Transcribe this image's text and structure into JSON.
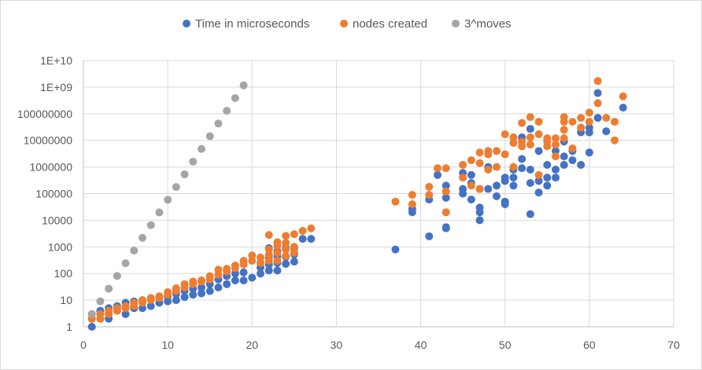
{
  "chart_data": {
    "type": "scatter",
    "title": "",
    "xlabel": "",
    "ylabel": "",
    "xlim": [
      0,
      70
    ],
    "x_ticks": [
      0,
      10,
      20,
      30,
      40,
      50,
      60,
      70
    ],
    "y_scale": "log",
    "ylim": [
      1,
      10000000000
    ],
    "y_ticks": [
      1,
      10,
      100,
      1000,
      10000,
      100000,
      1000000,
      10000000,
      100000000,
      1000000000,
      10000000000
    ],
    "y_tick_labels": [
      "1",
      "10",
      "100",
      "1000",
      "10000",
      "100000",
      "1000000",
      "10000000",
      "100000000",
      "1E+09",
      "1E+10"
    ],
    "grid": true,
    "legend_position": "top",
    "series": [
      {
        "name": "Time in microseconds",
        "color": "#4472c4",
        "points": [
          [
            1,
            1
          ],
          [
            1,
            2
          ],
          [
            2,
            2
          ],
          [
            2,
            4
          ],
          [
            3,
            2
          ],
          [
            3,
            5
          ],
          [
            4,
            4
          ],
          [
            4,
            6
          ],
          [
            5,
            3
          ],
          [
            5,
            8
          ],
          [
            6,
            5
          ],
          [
            6,
            9
          ],
          [
            7,
            5
          ],
          [
            7,
            10
          ],
          [
            8,
            6
          ],
          [
            8,
            11
          ],
          [
            9,
            8
          ],
          [
            9,
            12
          ],
          [
            10,
            9
          ],
          [
            10,
            14
          ],
          [
            11,
            10
          ],
          [
            11,
            17
          ],
          [
            12,
            13
          ],
          [
            12,
            22
          ],
          [
            13,
            16
          ],
          [
            13,
            27
          ],
          [
            14,
            18
          ],
          [
            14,
            30
          ],
          [
            15,
            22
          ],
          [
            15,
            40
          ],
          [
            16,
            30
          ],
          [
            16,
            60
          ],
          [
            17,
            40
          ],
          [
            17,
            80
          ],
          [
            18,
            55
          ],
          [
            18,
            100
          ],
          [
            19,
            55
          ],
          [
            19,
            110
          ],
          [
            20,
            70
          ],
          [
            21,
            100
          ],
          [
            21,
            170
          ],
          [
            22,
            130
          ],
          [
            22,
            220
          ],
          [
            22,
            380
          ],
          [
            22,
            900
          ],
          [
            23,
            130
          ],
          [
            23,
            250
          ],
          [
            23,
            450
          ],
          [
            23,
            700
          ],
          [
            24,
            230
          ],
          [
            24,
            420
          ],
          [
            24,
            900
          ],
          [
            25,
            280
          ],
          [
            25,
            520
          ],
          [
            25,
            900
          ],
          [
            26,
            2000
          ],
          [
            27,
            2000
          ],
          [
            37,
            800
          ],
          [
            39,
            20000
          ],
          [
            39,
            27000
          ],
          [
            41,
            2500
          ],
          [
            41,
            60000
          ],
          [
            42,
            500000
          ],
          [
            43,
            5000
          ],
          [
            43,
            5500
          ],
          [
            43,
            70000
          ],
          [
            43,
            200000
          ],
          [
            45,
            100000
          ],
          [
            45,
            150000
          ],
          [
            45,
            600000
          ],
          [
            46,
            60000
          ],
          [
            46,
            250000
          ],
          [
            46,
            500000
          ],
          [
            47,
            10000
          ],
          [
            47,
            20000
          ],
          [
            47,
            30000
          ],
          [
            47,
            150000
          ],
          [
            48,
            150000
          ],
          [
            48,
            1000000
          ],
          [
            49,
            80000
          ],
          [
            49,
            200000
          ],
          [
            50,
            40000
          ],
          [
            50,
            50000
          ],
          [
            50,
            300000
          ],
          [
            50,
            400000
          ],
          [
            51,
            200000
          ],
          [
            51,
            400000
          ],
          [
            51,
            800000
          ],
          [
            52,
            900000
          ],
          [
            52,
            2000000
          ],
          [
            52,
            13000000
          ],
          [
            53,
            17000
          ],
          [
            53,
            250000
          ],
          [
            53,
            800000
          ],
          [
            53,
            27000000
          ],
          [
            54,
            110000
          ],
          [
            54,
            300000
          ],
          [
            54,
            4000000
          ],
          [
            55,
            200000
          ],
          [
            55,
            400000
          ],
          [
            55,
            1200000
          ],
          [
            56,
            400000
          ],
          [
            56,
            800000
          ],
          [
            56,
            4000000
          ],
          [
            57,
            1200000
          ],
          [
            57,
            2500000
          ],
          [
            57,
            9000000
          ],
          [
            58,
            1800000
          ],
          [
            58,
            4000000
          ],
          [
            59,
            1200000
          ],
          [
            59,
            20000000
          ],
          [
            59,
            30000000
          ],
          [
            60,
            3500000
          ],
          [
            60,
            20000000
          ],
          [
            60,
            30000000
          ],
          [
            61,
            70000000
          ],
          [
            61,
            600000000
          ],
          [
            62,
            22000000
          ],
          [
            64,
            170000000
          ]
        ]
      },
      {
        "name": "nodes created",
        "color": "#ed7d31",
        "points": [
          [
            1,
            2
          ],
          [
            1,
            3
          ],
          [
            2,
            2
          ],
          [
            2,
            3
          ],
          [
            3,
            3
          ],
          [
            3,
            4
          ],
          [
            4,
            4
          ],
          [
            4,
            5
          ],
          [
            5,
            5
          ],
          [
            5,
            6
          ],
          [
            6,
            6
          ],
          [
            6,
            8
          ],
          [
            7,
            8
          ],
          [
            7,
            10
          ],
          [
            8,
            10
          ],
          [
            8,
            12
          ],
          [
            9,
            12
          ],
          [
            9,
            14
          ],
          [
            10,
            16
          ],
          [
            10,
            20
          ],
          [
            11,
            22
          ],
          [
            11,
            28
          ],
          [
            12,
            30
          ],
          [
            12,
            40
          ],
          [
            13,
            40
          ],
          [
            13,
            50
          ],
          [
            14,
            50
          ],
          [
            14,
            55
          ],
          [
            15,
            60
          ],
          [
            15,
            80
          ],
          [
            16,
            90
          ],
          [
            16,
            140
          ],
          [
            17,
            120
          ],
          [
            17,
            150
          ],
          [
            18,
            160
          ],
          [
            18,
            200
          ],
          [
            19,
            220
          ],
          [
            19,
            300
          ],
          [
            20,
            300
          ],
          [
            20,
            480
          ],
          [
            21,
            250
          ],
          [
            21,
            400
          ],
          [
            22,
            300
          ],
          [
            22,
            500
          ],
          [
            22,
            800
          ],
          [
            22,
            2800
          ],
          [
            23,
            300
          ],
          [
            23,
            600
          ],
          [
            23,
            1100
          ],
          [
            23,
            1500
          ],
          [
            24,
            450
          ],
          [
            24,
            800
          ],
          [
            24,
            1400
          ],
          [
            24,
            2600
          ],
          [
            25,
            600
          ],
          [
            25,
            1000
          ],
          [
            25,
            3000
          ],
          [
            26,
            4000
          ],
          [
            27,
            5000
          ],
          [
            37,
            50000
          ],
          [
            39,
            40000
          ],
          [
            39,
            90000
          ],
          [
            41,
            90000
          ],
          [
            41,
            180000
          ],
          [
            42,
            900000
          ],
          [
            43,
            20000
          ],
          [
            43,
            120000
          ],
          [
            43,
            900000
          ],
          [
            45,
            1200000
          ],
          [
            45,
            400000
          ],
          [
            46,
            1800000
          ],
          [
            46,
            200000
          ],
          [
            47,
            150000
          ],
          [
            47,
            1400000
          ],
          [
            47,
            3500000
          ],
          [
            48,
            800000
          ],
          [
            48,
            3000000
          ],
          [
            48,
            4000000
          ],
          [
            49,
            1000000
          ],
          [
            49,
            4000000
          ],
          [
            50,
            3000000
          ],
          [
            50,
            17000000
          ],
          [
            51,
            1000000
          ],
          [
            51,
            8000000
          ],
          [
            51,
            13000000
          ],
          [
            52,
            6000000
          ],
          [
            52,
            9000000
          ],
          [
            52,
            45000000
          ],
          [
            53,
            7000000
          ],
          [
            53,
            13000000
          ],
          [
            53,
            75000000
          ],
          [
            54,
            500000
          ],
          [
            54,
            17000000
          ],
          [
            54,
            50000000
          ],
          [
            55,
            6000000
          ],
          [
            55,
            9000000
          ],
          [
            55,
            12000000
          ],
          [
            56,
            2500000
          ],
          [
            56,
            7000000
          ],
          [
            56,
            12000000
          ],
          [
            57,
            12000000
          ],
          [
            57,
            25000000
          ],
          [
            57,
            50000000
          ],
          [
            57,
            75000000
          ],
          [
            58,
            5000000
          ],
          [
            58,
            50000000
          ],
          [
            59,
            30000000
          ],
          [
            59,
            70000000
          ],
          [
            60,
            50000000
          ],
          [
            60,
            110000000
          ],
          [
            61,
            250000000
          ],
          [
            61,
            1700000000
          ],
          [
            62,
            70000000
          ],
          [
            63,
            10000000
          ],
          [
            63,
            50000000
          ],
          [
            64,
            450000000
          ]
        ]
      },
      {
        "name": "3^moves",
        "color": "#a5a5a5",
        "points": [
          [
            1,
            3
          ],
          [
            2,
            9
          ],
          [
            3,
            27
          ],
          [
            4,
            81
          ],
          [
            5,
            243
          ],
          [
            6,
            729
          ],
          [
            7,
            2187
          ],
          [
            8,
            6561
          ],
          [
            9,
            19683
          ],
          [
            10,
            59049
          ],
          [
            11,
            177147
          ],
          [
            12,
            531441
          ],
          [
            13,
            1594323
          ],
          [
            14,
            4782969
          ],
          [
            15,
            14348907
          ],
          [
            16,
            43046721
          ],
          [
            17,
            129140163
          ],
          [
            18,
            387420489
          ],
          [
            19,
            1162261467
          ]
        ]
      }
    ]
  }
}
